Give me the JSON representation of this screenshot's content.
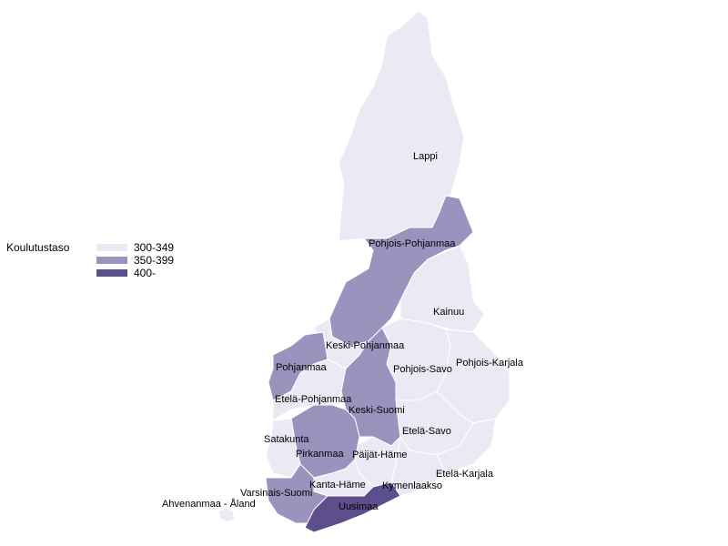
{
  "legend": {
    "title": "Koulutustaso",
    "classes": [
      {
        "label": "300-349",
        "color": "#ebe9f4"
      },
      {
        "label": "350-399",
        "color": "#9c92be"
      },
      {
        "label": "400-",
        "color": "#5c4f8c"
      }
    ]
  },
  "regions": [
    {
      "name": "Lappi",
      "class": 0
    },
    {
      "name": "Pohjois-Pohjanmaa",
      "class": 1
    },
    {
      "name": "Kainuu",
      "class": 0
    },
    {
      "name": "Keski-Pohjanmaa",
      "class": 0
    },
    {
      "name": "Pohjanmaa",
      "class": 1
    },
    {
      "name": "Etelä-Pohjanmaa",
      "class": 0
    },
    {
      "name": "Keski-Suomi",
      "class": 1
    },
    {
      "name": "Pohjois-Savo",
      "class": 0
    },
    {
      "name": "Pohjois-Karjala",
      "class": 0
    },
    {
      "name": "Etelä-Savo",
      "class": 0
    },
    {
      "name": "Etelä-Karjala",
      "class": 0
    },
    {
      "name": "Kymenlaakso",
      "class": 0
    },
    {
      "name": "Päijät-Häme",
      "class": 0
    },
    {
      "name": "Pirkanmaa",
      "class": 1
    },
    {
      "name": "Satakunta",
      "class": 0
    },
    {
      "name": "Kanta-Häme",
      "class": 0
    },
    {
      "name": "Varsinais-Suomi",
      "class": 1
    },
    {
      "name": "Uusimaa",
      "class": 2
    },
    {
      "name": "Ahvenanmaa - Åland",
      "class": 0
    }
  ]
}
